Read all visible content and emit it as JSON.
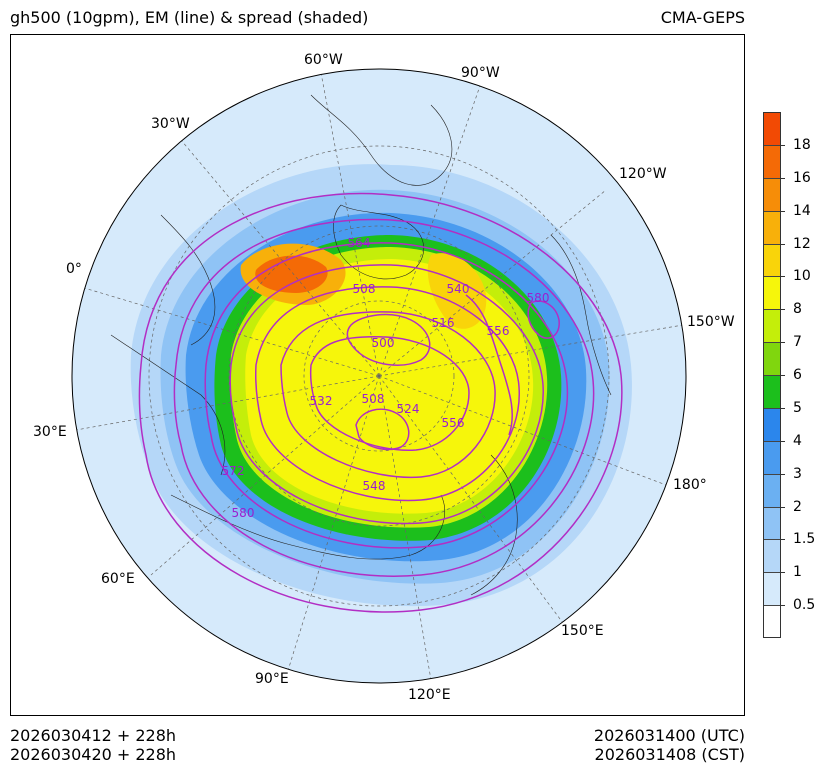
{
  "header": {
    "title": "gh500 (10gpm), EM (line) & spread (shaded)",
    "model": "CMA-GEPS"
  },
  "footer": {
    "init_utc": "2026030412 + 228h",
    "init_cst": "2026030420 + 228h",
    "valid_utc": "2026031400 (UTC)",
    "valid_cst": "2026031408 (CST)"
  },
  "map": {
    "projection": "north-polar-stereographic",
    "longitude_labels": [
      {
        "text": "60°W",
        "lon": -60
      },
      {
        "text": "90°W",
        "lon": -90
      },
      {
        "text": "30°W",
        "lon": -30
      },
      {
        "text": "120°W",
        "lon": -120
      },
      {
        "text": "0°",
        "lon": 0
      },
      {
        "text": "150°W",
        "lon": -150
      },
      {
        "text": "30°E",
        "lon": 30
      },
      {
        "text": "180°",
        "lon": 180
      },
      {
        "text": "60°E",
        "lon": 60
      },
      {
        "text": "150°E",
        "lon": 150
      },
      {
        "text": "90°E",
        "lon": 90
      },
      {
        "text": "120°E",
        "lon": 120
      }
    ],
    "contour_labels": [
      "564",
      "508",
      "540",
      "580",
      "516",
      "556",
      "500",
      "532",
      "508",
      "524",
      "556",
      "572",
      "548",
      "580"
    ]
  },
  "colorbar": {
    "levels": [
      "0.5",
      "1",
      "1.5",
      "2",
      "3",
      "4",
      "5",
      "6",
      "7",
      "8",
      "10",
      "12",
      "14",
      "16",
      "18"
    ],
    "colors": [
      "#ffffff",
      "#d6eafb",
      "#b5d7f8",
      "#8fc3f5",
      "#6bb0f2",
      "#4a9bef",
      "#2b86ec",
      "#1cbf1c",
      "#80d60e",
      "#c4ee0a",
      "#f6f60b",
      "#f9d40a",
      "#f8b00a",
      "#f68d08",
      "#f46a06",
      "#f24a04"
    ]
  }
}
